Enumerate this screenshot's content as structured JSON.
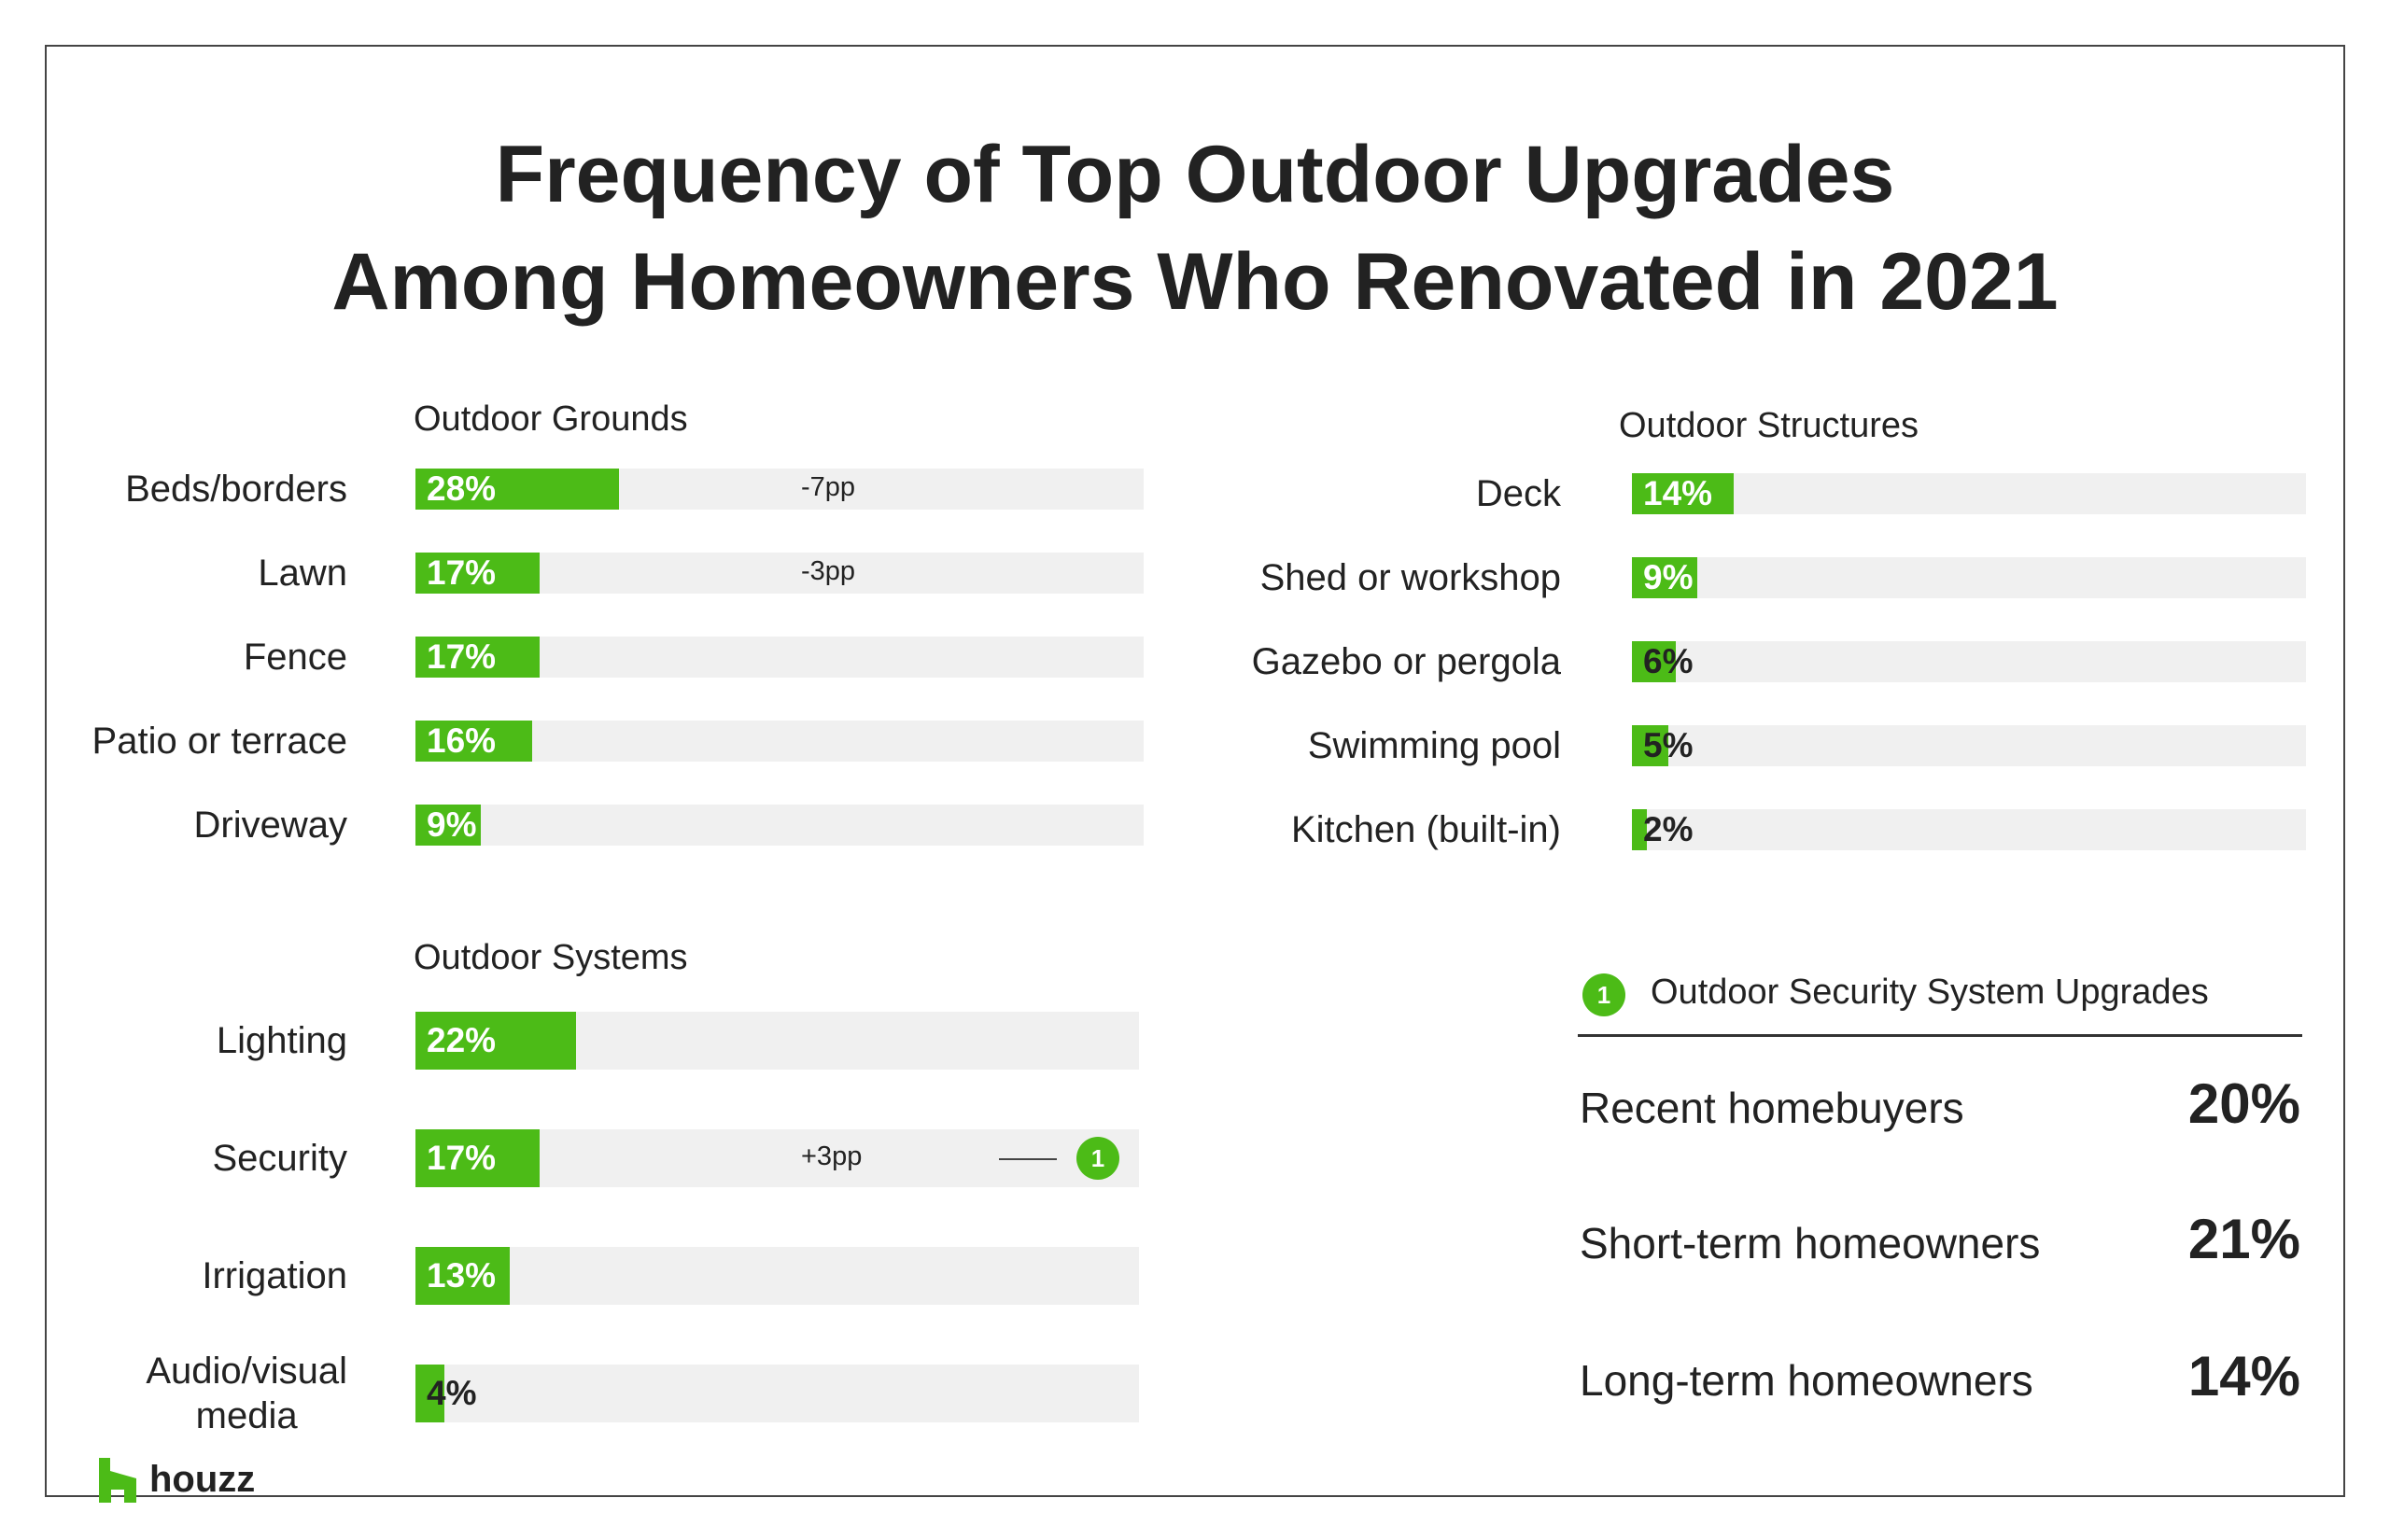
{
  "title_lines": [
    "Frequency of Top Outdoor Upgrades",
    "Among Homeowners Who Renovated in 2021"
  ],
  "colors": {
    "accent": "#4cbb17",
    "track": "#f0f0f0",
    "text": "#222222"
  },
  "chart_data": [
    {
      "type": "bar",
      "orientation": "horizontal",
      "title": "Outdoor Grounds",
      "categories": [
        "Beds/borders",
        "Lawn",
        "Fence",
        "Patio or terrace",
        "Driveway"
      ],
      "values": [
        28,
        17,
        17,
        16,
        9
      ],
      "value_labels": [
        "28%",
        "17%",
        "17%",
        "16%",
        "9%"
      ],
      "changes": [
        "-7pp",
        "-3pp",
        "",
        "",
        ""
      ],
      "xlim": [
        0,
        100
      ]
    },
    {
      "type": "bar",
      "orientation": "horizontal",
      "title": "Outdoor Structures",
      "categories": [
        "Deck",
        "Shed or workshop",
        "Gazebo or pergola",
        "Swimming pool",
        "Kitchen (built-in)"
      ],
      "values": [
        14,
        9,
        6,
        5,
        2
      ],
      "value_labels": [
        "14%",
        "9%",
        "6%",
        "5%",
        "2%"
      ],
      "changes": [
        "",
        "",
        "",
        "",
        ""
      ],
      "xlim": [
        0,
        100
      ]
    },
    {
      "type": "bar",
      "orientation": "horizontal",
      "title": "Outdoor Systems",
      "categories": [
        "Lighting",
        "Security",
        "Irrigation",
        "Audio/visual media"
      ],
      "values": [
        22,
        17,
        13,
        4
      ],
      "value_labels": [
        "22%",
        "17%",
        "13%",
        "4%"
      ],
      "changes": [
        "",
        "+3pp",
        "",
        ""
      ],
      "callouts": [
        "",
        "1",
        "",
        ""
      ],
      "xlim": [
        0,
        100
      ]
    }
  ],
  "security_panel": {
    "badge": "1",
    "title": "Outdoor Security System Upgrades",
    "rows": [
      {
        "label": "Recent homebuyers",
        "value": "20%"
      },
      {
        "label": "Short-term homeowners",
        "value": "21%"
      },
      {
        "label": "Long-term homeowners",
        "value": "14%"
      }
    ]
  },
  "logo": {
    "text": "houzz"
  }
}
